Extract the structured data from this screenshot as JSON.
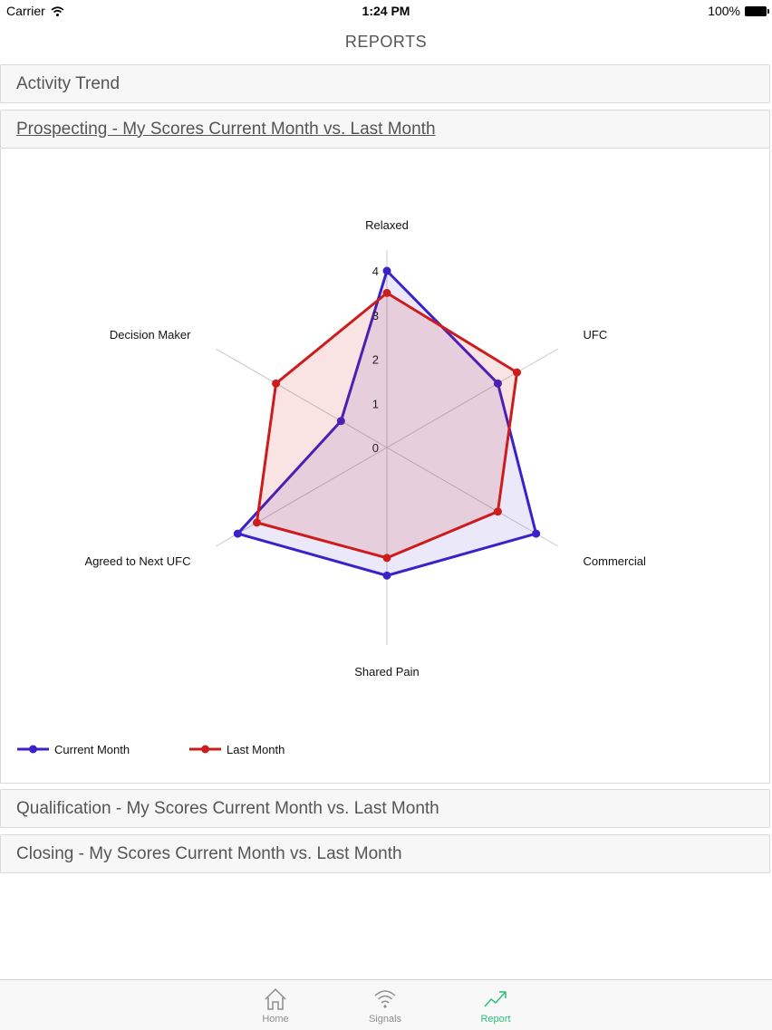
{
  "status_bar": {
    "carrier": "Carrier",
    "time": "1:24 PM",
    "battery": "100%"
  },
  "nav": {
    "title": "REPORTS"
  },
  "sections": [
    {
      "label": "Activity Trend"
    },
    {
      "label": "Prospecting - My Scores Current Month vs. Last Month"
    },
    {
      "label": "Qualification - My Scores Current Month vs. Last Month"
    },
    {
      "label": "Closing - My Scores Current Month vs. Last Month"
    }
  ],
  "chart_data": {
    "type": "radar",
    "categories": [
      "Relaxed",
      "UFC",
      "Commercial",
      "Shared Pain",
      "Agreed to Next UFC",
      "Decision Maker"
    ],
    "series": [
      {
        "name": "Current Month",
        "values": [
          4.0,
          2.9,
          3.9,
          2.9,
          3.9,
          1.2
        ],
        "color": "#3a22c8"
      },
      {
        "name": "Last Month",
        "values": [
          3.5,
          3.4,
          2.9,
          2.5,
          3.4,
          2.9
        ],
        "color": "#cc1c1c"
      }
    ],
    "radial_ticks": [
      "0",
      "1",
      "2",
      "3",
      "4"
    ],
    "rlim": [
      0,
      4
    ],
    "legend_position": "bottom-left"
  },
  "tabs": [
    {
      "label": "Home",
      "icon": "home-icon",
      "active": false
    },
    {
      "label": "Signals",
      "icon": "signals-icon",
      "active": false
    },
    {
      "label": "Report",
      "icon": "report-icon",
      "active": true
    }
  ],
  "colors": {
    "accent": "#2cc07c",
    "current": "#3a22c8",
    "last": "#cc1c1c"
  }
}
